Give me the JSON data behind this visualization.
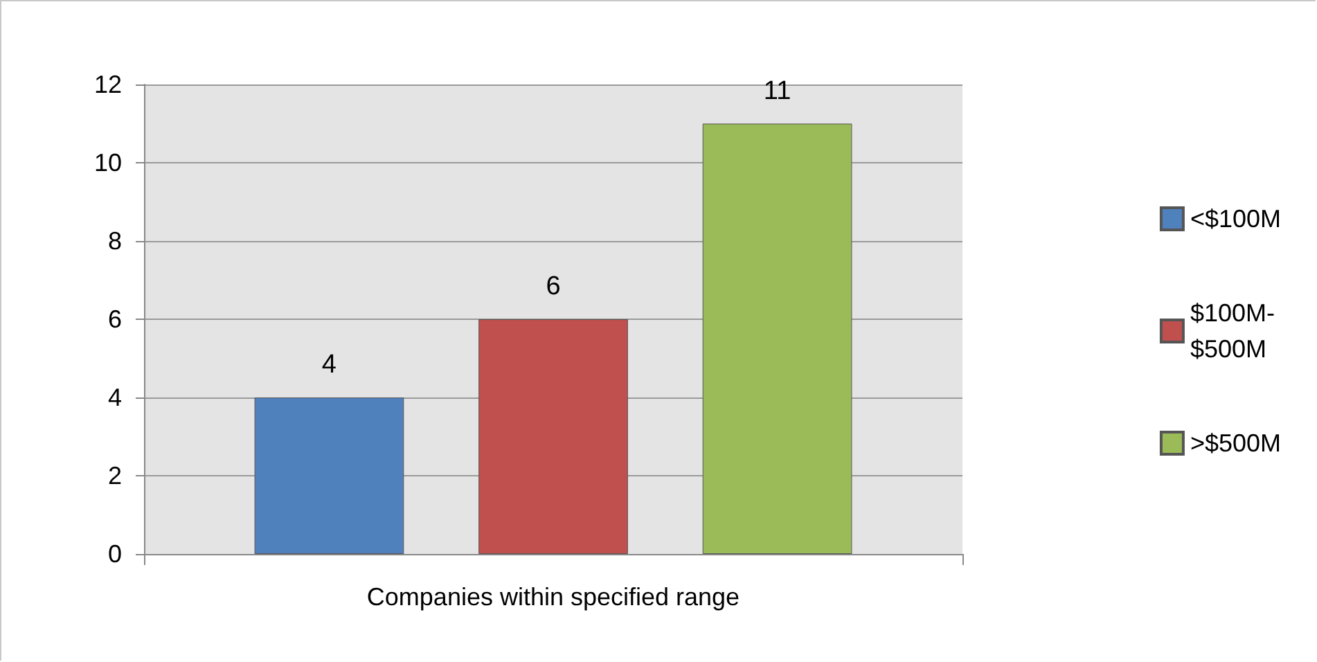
{
  "chart_data": {
    "type": "bar",
    "categories": [
      "Companies within specified range"
    ],
    "series": [
      {
        "name": "<$100M",
        "color": "#4f81bd",
        "values": [
          4
        ]
      },
      {
        "name": "$100M-$500M",
        "color": "#c0504d",
        "values": [
          6
        ]
      },
      {
        "name": ">$500M",
        "color": "#9bbb59",
        "values": [
          11
        ]
      }
    ],
    "ylim": [
      0,
      12
    ],
    "yticks": [
      0,
      2,
      4,
      6,
      8,
      10,
      12
    ],
    "grid": "y",
    "legend": "right",
    "data_labels": true
  }
}
